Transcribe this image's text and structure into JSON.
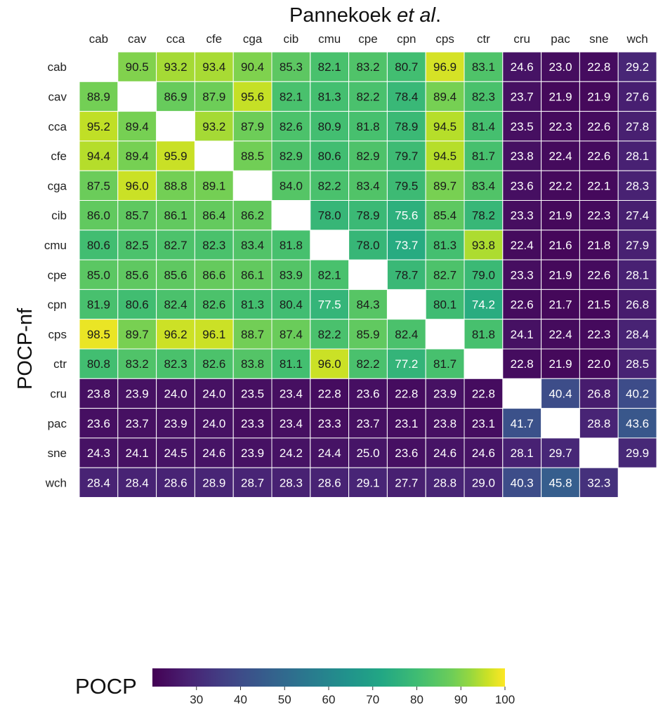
{
  "chart_data": {
    "type": "heatmap",
    "title_prefix": "Pannekoek ",
    "title_italic": "et al",
    "title_suffix": ".",
    "ylabel": "POCP-nf",
    "colorbar_label": "POCP",
    "colormap": "viridis",
    "vmin": 20,
    "vmax": 100,
    "colorbar_ticks": [
      "30",
      "40",
      "50",
      "60",
      "70",
      "80",
      "90",
      "100"
    ],
    "columns": [
      "cab",
      "cav",
      "cca",
      "cfe",
      "cga",
      "cib",
      "cmu",
      "cpe",
      "cpn",
      "cps",
      "ctr",
      "cru",
      "pac",
      "sne",
      "wch"
    ],
    "rows": [
      "cab",
      "cav",
      "cca",
      "cfe",
      "cga",
      "cib",
      "cmu",
      "cpe",
      "cpn",
      "cps",
      "ctr",
      "cru",
      "pac",
      "sne",
      "wch"
    ],
    "values": [
      [
        null,
        90.5,
        93.2,
        93.4,
        90.4,
        85.3,
        82.1,
        83.2,
        80.7,
        96.9,
        83.1,
        24.6,
        23.0,
        22.8,
        29.2
      ],
      [
        88.9,
        null,
        86.9,
        87.9,
        95.6,
        82.1,
        81.3,
        82.2,
        78.4,
        89.4,
        82.3,
        23.7,
        21.9,
        21.9,
        27.6
      ],
      [
        95.2,
        89.4,
        null,
        93.2,
        87.9,
        82.6,
        80.9,
        81.8,
        78.9,
        94.5,
        81.4,
        23.5,
        22.3,
        22.6,
        27.8
      ],
      [
        94.4,
        89.4,
        95.9,
        null,
        88.5,
        82.9,
        80.6,
        82.9,
        79.7,
        94.5,
        81.7,
        23.8,
        22.4,
        22.6,
        28.1
      ],
      [
        87.5,
        96.0,
        88.8,
        89.1,
        null,
        84.0,
        82.2,
        83.4,
        79.5,
        89.7,
        83.4,
        23.6,
        22.2,
        22.1,
        28.3
      ],
      [
        86.0,
        85.7,
        86.1,
        86.4,
        86.2,
        null,
        78.0,
        78.9,
        75.6,
        85.4,
        78.2,
        23.3,
        21.9,
        22.3,
        27.4
      ],
      [
        80.6,
        82.5,
        82.7,
        82.3,
        83.4,
        81.8,
        null,
        78.0,
        73.7,
        81.3,
        93.8,
        22.4,
        21.6,
        21.8,
        27.9
      ],
      [
        85.0,
        85.6,
        85.6,
        86.6,
        86.1,
        83.9,
        82.1,
        null,
        78.7,
        82.7,
        79.0,
        23.3,
        21.9,
        22.6,
        28.1
      ],
      [
        81.9,
        80.6,
        82.4,
        82.6,
        81.3,
        80.4,
        77.5,
        84.3,
        null,
        80.1,
        74.2,
        22.6,
        21.7,
        21.5,
        26.8
      ],
      [
        98.5,
        89.7,
        96.2,
        96.1,
        88.7,
        87.4,
        82.2,
        85.9,
        82.4,
        null,
        81.8,
        24.1,
        22.4,
        22.3,
        28.4
      ],
      [
        80.8,
        83.2,
        82.3,
        82.6,
        83.8,
        81.1,
        96.0,
        82.2,
        77.2,
        81.7,
        null,
        22.8,
        21.9,
        22.0,
        28.5
      ],
      [
        23.8,
        23.9,
        24.0,
        24.0,
        23.5,
        23.4,
        22.8,
        23.6,
        22.8,
        23.9,
        22.8,
        null,
        40.4,
        26.8,
        40.2
      ],
      [
        23.6,
        23.7,
        23.9,
        24.0,
        23.3,
        23.4,
        23.3,
        23.7,
        23.1,
        23.8,
        23.1,
        41.7,
        null,
        28.8,
        43.6
      ],
      [
        24.3,
        24.1,
        24.5,
        24.6,
        23.9,
        24.2,
        24.4,
        25.0,
        23.6,
        24.6,
        24.6,
        28.1,
        29.7,
        null,
        29.9
      ],
      [
        28.4,
        28.4,
        28.6,
        28.9,
        28.7,
        28.3,
        28.6,
        29.1,
        27.7,
        28.8,
        29.0,
        40.3,
        45.8,
        32.3,
        null
      ]
    ]
  }
}
